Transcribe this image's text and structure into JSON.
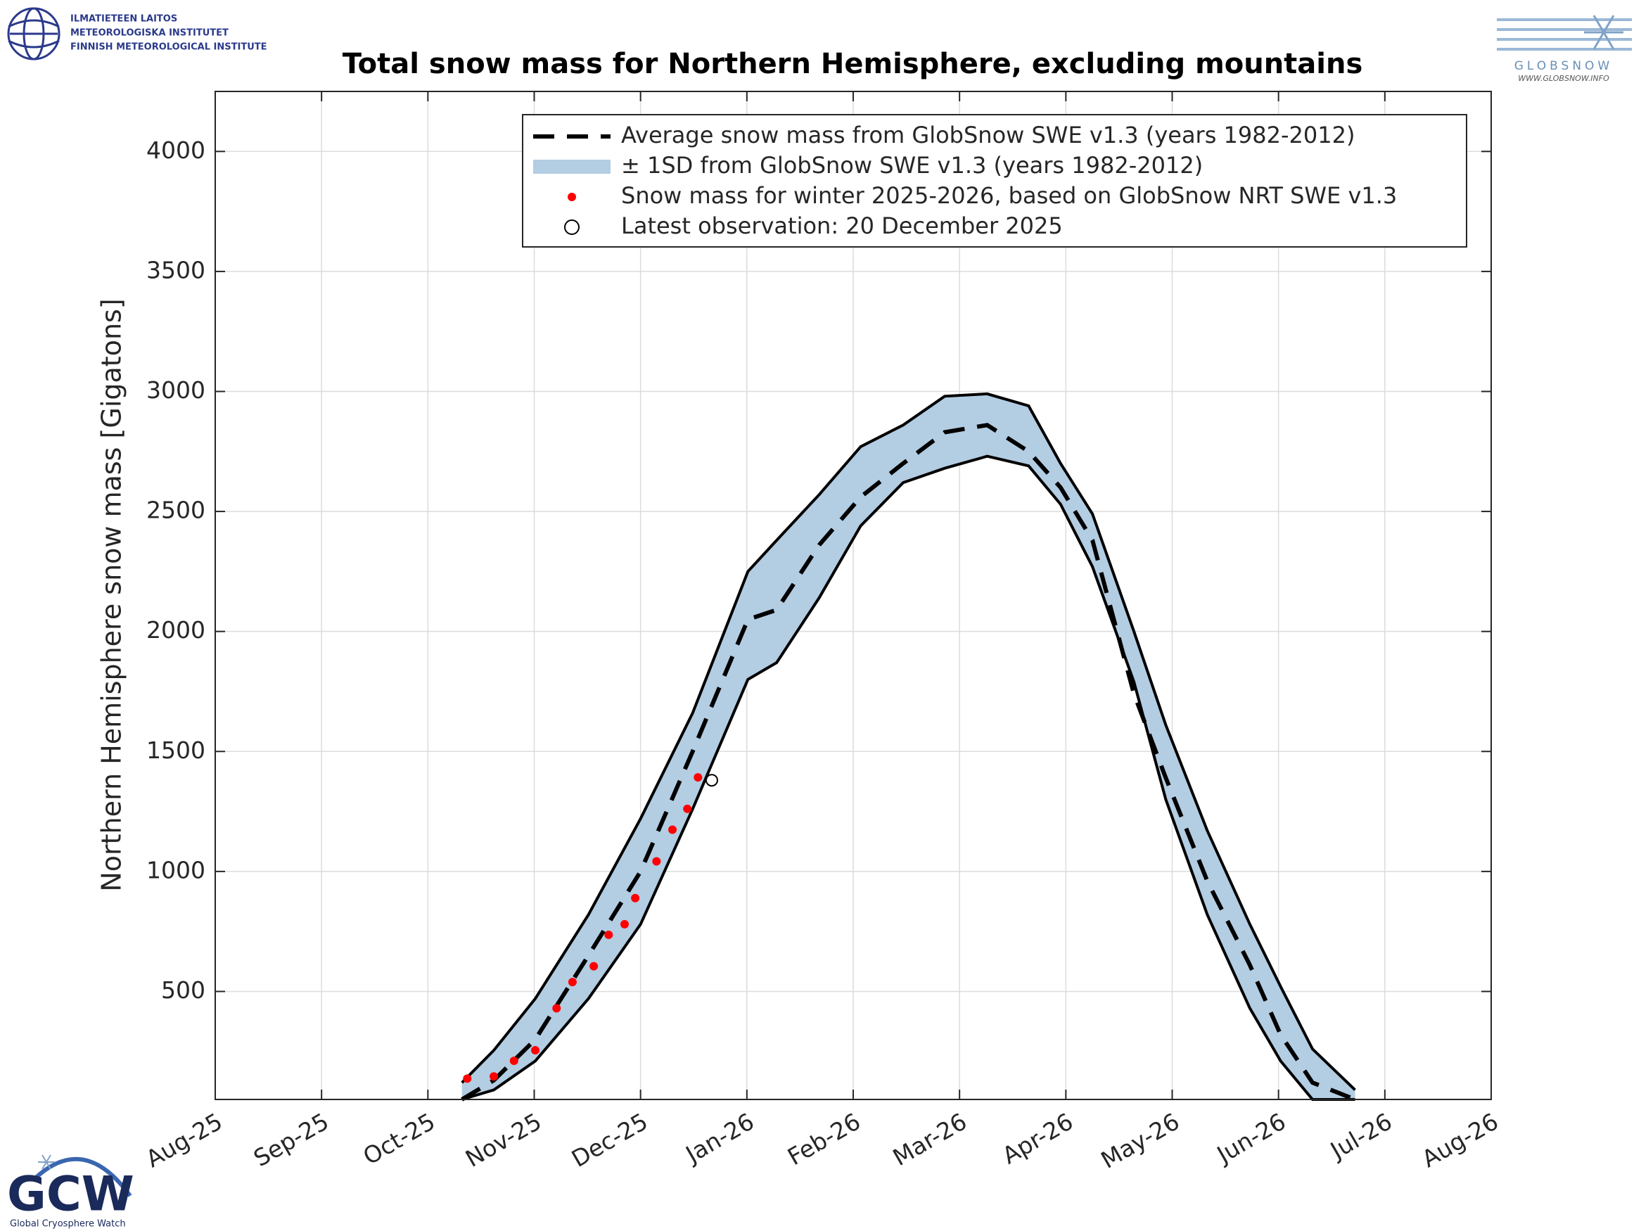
{
  "header": {
    "institute": [
      "ILMATIETEEN LAITOS",
      "METEOROLOGISKA INSTITUTET",
      "FINNISH METEOROLOGICAL INSTITUTE"
    ],
    "globsnow": "GLOBSNOW",
    "globsnow_url": "WWW.GLOBSNOW.INFO",
    "gcw": "GCW",
    "gcw_name": "Global Cryosphere Watch"
  },
  "chart_data": {
    "type": "line",
    "title": "Total snow mass for Northern Hemisphere, excluding mountains",
    "y_label": "Northern Hemisphere snow mass [Gigatons]",
    "xlim": [
      0,
      12
    ],
    "xticks": [
      {
        "value": 0,
        "label": "Aug-25"
      },
      {
        "value": 1,
        "label": "Sep-25"
      },
      {
        "value": 2,
        "label": "Oct-25"
      },
      {
        "value": 3,
        "label": "Nov-25"
      },
      {
        "value": 4,
        "label": "Dec-25"
      },
      {
        "value": 5,
        "label": "Jan-26"
      },
      {
        "value": 6,
        "label": "Feb-26"
      },
      {
        "value": 7,
        "label": "Mar-26"
      },
      {
        "value": 8,
        "label": "Apr-26"
      },
      {
        "value": 9,
        "label": "May-26"
      },
      {
        "value": 10,
        "label": "Jun-26"
      },
      {
        "value": 11,
        "label": "Jul-26"
      },
      {
        "value": 12,
        "label": "Aug-26"
      }
    ],
    "ylim": [
      50,
      4250
    ],
    "yticks": [
      500,
      1000,
      1500,
      2000,
      2500,
      3000,
      3500,
      4000
    ],
    "grid": true,
    "legend": "upper right",
    "x": [
      2.32,
      2.62,
      3.01,
      3.51,
      4.0,
      4.49,
      5.01,
      5.28,
      5.68,
      6.07,
      6.47,
      6.86,
      7.26,
      7.65,
      7.95,
      8.25,
      8.64,
      8.94,
      9.33,
      9.73,
      10.02,
      10.32,
      10.72
    ],
    "series": [
      {
        "name": "Average snow mass from GlobSnow SWE v1.3 (years 1982-2012)",
        "color": "#000000",
        "dashed": true,
        "values": [
          50,
          130,
          300,
          650,
          1000,
          1500,
          2050,
          2090,
          2360,
          2560,
          2700,
          2830,
          2860,
          2750,
          2600,
          2380,
          1740,
          1390,
          960,
          610,
          320,
          120,
          50
        ]
      },
      {
        "name": "± 1SD from GlobSnow SWE v1.3 (years 1982-2012)",
        "color": "#b3cde3",
        "edge_color": "#000000",
        "upper": [
          120,
          255,
          470,
          820,
          1220,
          1660,
          2250,
          2380,
          2570,
          2770,
          2860,
          2980,
          2990,
          2940,
          2700,
          2490,
          2000,
          1610,
          1170,
          780,
          520,
          260,
          90
        ],
        "lower": [
          50,
          90,
          210,
          470,
          780,
          1260,
          1800,
          1870,
          2140,
          2440,
          2620,
          2680,
          2730,
          2690,
          2530,
          2270,
          1790,
          1300,
          820,
          430,
          210,
          50,
          50
        ]
      },
      {
        "name": "Snow mass for winter 2025-2026, based on GlobSnow NRT SWE v1.3",
        "color": "#ff0000",
        "x": [
          2.37,
          2.62,
          2.81,
          3.01,
          3.21,
          3.36,
          3.56,
          3.7,
          3.85,
          3.95,
          4.15,
          4.3,
          4.44,
          4.54
        ],
        "values": [
          137,
          146,
          211,
          255,
          430,
          539,
          605,
          736,
          780,
          889,
          1042,
          1174,
          1261,
          1392
        ]
      },
      {
        "name": "Latest observation: 20 December 2025",
        "color": "#000000",
        "x": [
          4.67
        ],
        "values": [
          1380
        ]
      }
    ]
  }
}
